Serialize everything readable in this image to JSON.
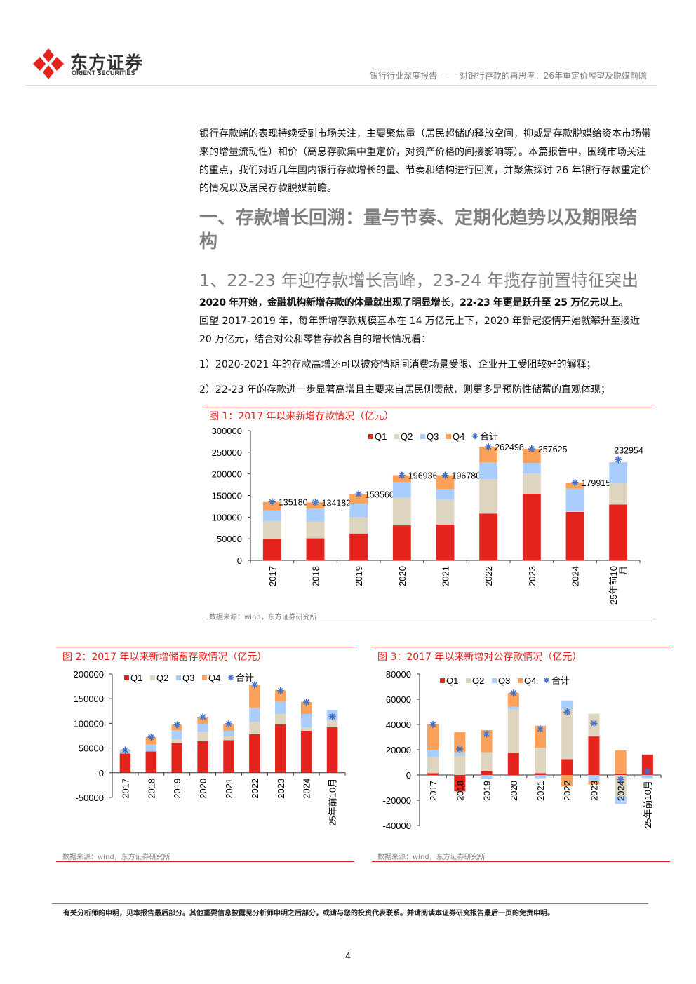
{
  "header": {
    "logo_cn": "东方证券",
    "logo_en": "ORIENT SECURITIES",
    "report_title": "银行行业深度报告 —— 对银行存款的再思考：26年重定价展望及脱媒前瞻"
  },
  "body": {
    "intro": "银行存款端的表现持续受到市场关注，主要聚焦量（居民超储的释放空间，抑或是存款脱媒给资本市场带来的增量流动性）和价（高息存款集中重定价，对资产价格的间接影响等）。本篇报告中，围绕市场关注的重点，我们对近几年国内银行存款增长的量、节奏和结构进行回溯，并聚焦探讨 26 年银行存款重定价的情况以及居民存款脱媒前瞻。",
    "heading1": "一、存款增长回溯：量与节奏、定期化趋势以及期限结构",
    "heading2": "1、22-23 年迎存款增长高峰，23-24 年揽存前置特征突出",
    "bold_lead": "2020 年开始，金融机构新增存款的体量就出现了明显增长，22-23 年更是跃升至 25 万亿元以上。",
    "para2": "回望 2017-2019 年，每年新增存款规模基本在 14 万亿元上下，2020 年新冠疫情开始就攀升至接近 20 万亿元，结合对公和零售存款各自的增长情况看：",
    "point1": "1）2020-2021 年的存款高增还可以被疫情期间消费场景受限、企业开工受阻较好的解释；",
    "point2": "2）22-23 年的存款进一步显著高增且主要来自居民侧贡献，则更多是预防性储蓄的直观体现；"
  },
  "colors": {
    "Q1": "#e5231d",
    "Q2": "#ddd5bf",
    "Q3": "#a9cdfc",
    "Q4": "#fca15a",
    "total": "#4472c4",
    "accent": "#e5231d"
  },
  "figures": [
    {
      "title": "图 1：2017 年以来新增存款情况（亿元）",
      "source": "数据来源：wind，东方证券研究所"
    },
    {
      "title": "图 2：2017 年以来新增储蓄存款情况（亿元）",
      "source": "数据来源：wind，东方证券研究所"
    },
    {
      "title": "图 3：2017 年以来新增对公存款情况（亿元）",
      "source": "数据来源：wind，东方证券研究所"
    }
  ],
  "chart_data": [
    {
      "type": "bar",
      "stacked": true,
      "categories": [
        "2017",
        "2018",
        "2019",
        "2020",
        "2021",
        "2022",
        "2023",
        "2024",
        "25年前10月"
      ],
      "ylim": [
        0,
        300000
      ],
      "yticks": [
        0,
        50000,
        100000,
        150000,
        200000,
        250000,
        300000
      ],
      "legend": [
        "Q1",
        "Q2",
        "Q3",
        "Q4",
        "合计"
      ],
      "legend_position": "top",
      "series": [
        {
          "name": "Q1",
          "values": [
            50000,
            51000,
            62000,
            81000,
            83000,
            108000,
            154000,
            112000,
            129000
          ]
        },
        {
          "name": "Q2",
          "values": [
            41000,
            39000,
            38000,
            64000,
            57000,
            80000,
            47000,
            2000,
            50000
          ]
        },
        {
          "name": "Q3",
          "values": [
            25000,
            30000,
            31000,
            36000,
            25000,
            39000,
            24000,
            52000,
            48000
          ]
        },
        {
          "name": "Q4",
          "values": [
            19180,
            14182,
            22560,
            15936,
            31780,
            35498,
            32625,
            13915,
            null
          ]
        },
        {
          "name": "合计",
          "type": "marker",
          "values": [
            135180,
            134182,
            153560,
            196936,
            196780,
            262498,
            257625,
            179915,
            232954
          ],
          "labels": [
            "135180",
            "134182",
            "153560",
            "196936",
            "196780",
            "262498",
            "257625",
            "179915",
            "232954"
          ]
        }
      ]
    },
    {
      "type": "bar",
      "stacked": true,
      "categories": [
        "2017",
        "2018",
        "2019",
        "2020",
        "2021",
        "2022",
        "2023",
        "2024",
        "25年前10月"
      ],
      "ylim": [
        -50000,
        200000
      ],
      "yticks": [
        -50000,
        0,
        50000,
        100000,
        150000,
        200000
      ],
      "legend": [
        "Q1",
        "Q2",
        "Q3",
        "Q4",
        "合计"
      ],
      "legend_position": "top",
      "series": [
        {
          "name": "Q1",
          "values": [
            39000,
            43000,
            60000,
            64000,
            66000,
            78000,
            98000,
            85000,
            92000
          ]
        },
        {
          "name": "Q2",
          "values": [
            1000,
            0,
            8000,
            19000,
            8000,
            25000,
            21000,
            7000,
            15000
          ]
        },
        {
          "name": "Q3",
          "values": [
            5000,
            14000,
            18000,
            16000,
            11000,
            29000,
            25000,
            27000,
            20000
          ]
        },
        {
          "name": "Q4",
          "values": [
            2000,
            15000,
            11000,
            14000,
            14000,
            46000,
            23000,
            24000,
            null
          ]
        },
        {
          "name": "合计",
          "type": "marker",
          "values": [
            46000,
            72000,
            97000,
            113000,
            99000,
            178000,
            166000,
            143000,
            114000
          ]
        }
      ]
    },
    {
      "type": "bar",
      "stacked": true,
      "categories": [
        "2017",
        "2018",
        "2019",
        "2020",
        "2021",
        "2022",
        "2023",
        "2024",
        "25年前10月"
      ],
      "ylim": [
        -40000,
        80000
      ],
      "yticks": [
        -40000,
        -20000,
        0,
        20000,
        40000,
        60000,
        80000
      ],
      "legend": [
        "Q1",
        "Q2",
        "Q3",
        "Q4",
        "合计"
      ],
      "legend_position": "top",
      "series": [
        {
          "name": "Q1",
          "values": [
            1500,
            -13000,
            3000,
            17500,
            1500,
            12500,
            30500,
            1000,
            16000
          ]
        },
        {
          "name": "Q2",
          "values": [
            12500,
            15000,
            15000,
            34500,
            20000,
            39500,
            18000,
            -17000,
            500
          ]
        },
        {
          "name": "Q3",
          "values": [
            6000,
            3000,
            -3000,
            2000,
            -2500,
            7000,
            -4500,
            -6000,
            -2500
          ]
        },
        {
          "name": "Q4",
          "values": [
            20500,
            16000,
            17500,
            11000,
            17500,
            -9000,
            -3000,
            18500,
            null
          ]
        },
        {
          "name": "合计",
          "type": "marker",
          "values": [
            40000,
            20500,
            32500,
            65000,
            36500,
            50000,
            41000,
            -3500,
            3000
          ]
        }
      ]
    }
  ],
  "footer": {
    "disclaimer": "有关分析师的申明，见本报告最后部分。其他重要信息披露见分析师申明之后部分，或请与您的投资代表联系。并请阅读本证券研究报告最后一页的免责申明。",
    "page_number": "4"
  }
}
